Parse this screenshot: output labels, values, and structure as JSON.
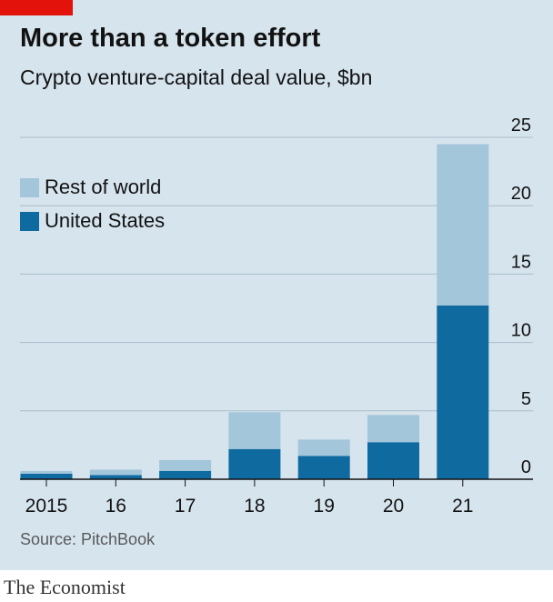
{
  "header": {
    "title": "More than a token effort",
    "subtitle": "Crypto venture-capital deal value, $bn"
  },
  "legend": {
    "rest_label": "Rest of world",
    "us_label": "United States"
  },
  "colors": {
    "panel_bg": "#d6e4ee",
    "rest_of_world": "#a4c6da",
    "united_states": "#0f6aa0",
    "gridline": "#a9bcc9",
    "baseline": "#121212",
    "brand_red": "#e3120b"
  },
  "footer": {
    "source": "Source: PitchBook",
    "publisher": "The Economist"
  },
  "chart_data": {
    "type": "bar",
    "stacked": true,
    "title": "More than a token effort",
    "subtitle": "Crypto venture-capital deal value, $bn",
    "categories": [
      "2015",
      "16",
      "17",
      "18",
      "19",
      "20",
      "21"
    ],
    "series": [
      {
        "name": "United States",
        "values": [
          0.4,
          0.3,
          0.6,
          2.2,
          1.7,
          2.7,
          12.7
        ]
      },
      {
        "name": "Rest of world",
        "values": [
          0.2,
          0.4,
          0.8,
          2.7,
          1.2,
          2.0,
          11.8
        ]
      }
    ],
    "ylim": [
      0,
      25
    ],
    "yticks": [
      0,
      5,
      10,
      15,
      20,
      25
    ],
    "grid": true,
    "legend_position": "top-left"
  }
}
